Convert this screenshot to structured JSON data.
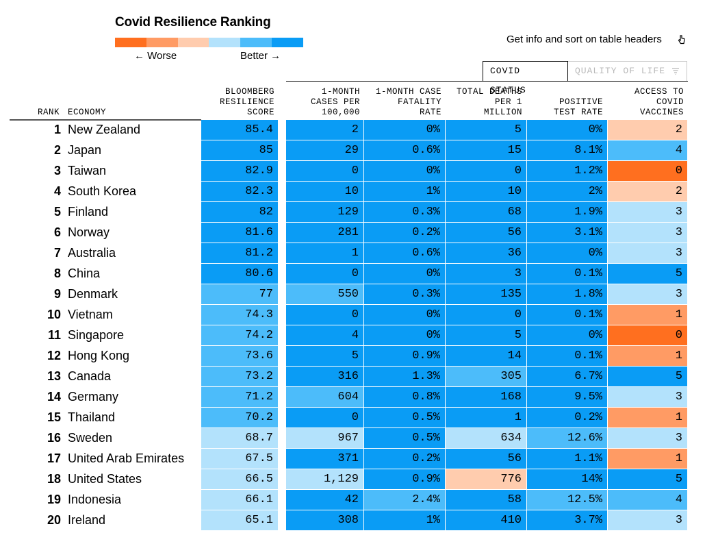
{
  "title": "Covid Resilience Ranking",
  "legend": {
    "worse_label": "← Worse",
    "better_label": "Better →",
    "colors": [
      "#ff6f1f",
      "#ff9b64",
      "#ffccae",
      "#b3e2fc",
      "#4cbcfa",
      "#0a9cf5"
    ]
  },
  "hint": {
    "text": "Get info and sort on table headers",
    "icon": "pointer-hand-icon"
  },
  "tabs": {
    "active": "COVID STATUS",
    "inactive": "QUALITY OF LIFE",
    "filter_icon": "filter-icon"
  },
  "headers": {
    "rank": "RANK",
    "economy": "ECONOMY",
    "score": "BLOOMBERG\nRESILIENCE\nSCORE",
    "cases": "1-MONTH\nCASES PER\n100,000",
    "fatality": "1-MONTH CASE\nFATALITY\nRATE",
    "deaths": "TOTAL DEATHS\nPER 1\nMILLION",
    "positive": "POSITIVE\nTEST RATE",
    "vaccines": "ACCESS TO\nCOVID\nVACCINES"
  },
  "rows": [
    {
      "rank": "1",
      "economy": "New Zealand",
      "score": "85.4",
      "cases": "2",
      "fatality": "0%",
      "deaths": "5",
      "positive": "0%",
      "vaccines": "2",
      "c": [
        5,
        5,
        5,
        5,
        5,
        2
      ]
    },
    {
      "rank": "2",
      "economy": "Japan",
      "score": "85",
      "cases": "29",
      "fatality": "0.6%",
      "deaths": "15",
      "positive": "8.1%",
      "vaccines": "4",
      "c": [
        5,
        5,
        5,
        5,
        5,
        4
      ]
    },
    {
      "rank": "3",
      "economy": "Taiwan",
      "score": "82.9",
      "cases": "0",
      "fatality": "0%",
      "deaths": "0",
      "positive": "1.2%",
      "vaccines": "0",
      "c": [
        5,
        5,
        5,
        5,
        5,
        0
      ]
    },
    {
      "rank": "4",
      "economy": "South Korea",
      "score": "82.3",
      "cases": "10",
      "fatality": "1%",
      "deaths": "10",
      "positive": "2%",
      "vaccines": "2",
      "c": [
        5,
        5,
        5,
        5,
        5,
        2
      ]
    },
    {
      "rank": "5",
      "economy": "Finland",
      "score": "82",
      "cases": "129",
      "fatality": "0.3%",
      "deaths": "68",
      "positive": "1.9%",
      "vaccines": "3",
      "c": [
        5,
        5,
        5,
        5,
        5,
        3
      ]
    },
    {
      "rank": "6",
      "economy": "Norway",
      "score": "81.6",
      "cases": "281",
      "fatality": "0.2%",
      "deaths": "56",
      "positive": "3.1%",
      "vaccines": "3",
      "c": [
        5,
        5,
        5,
        5,
        5,
        3
      ]
    },
    {
      "rank": "7",
      "economy": "Australia",
      "score": "81.2",
      "cases": "1",
      "fatality": "0.6%",
      "deaths": "36",
      "positive": "0%",
      "vaccines": "3",
      "c": [
        5,
        5,
        5,
        5,
        5,
        3
      ]
    },
    {
      "rank": "8",
      "economy": "China",
      "score": "80.6",
      "cases": "0",
      "fatality": "0%",
      "deaths": "3",
      "positive": "0.1%",
      "vaccines": "5",
      "c": [
        5,
        5,
        5,
        5,
        5,
        5
      ]
    },
    {
      "rank": "9",
      "economy": "Denmark",
      "score": "77",
      "cases": "550",
      "fatality": "0.3%",
      "deaths": "135",
      "positive": "1.8%",
      "vaccines": "3",
      "c": [
        4,
        4,
        5,
        5,
        5,
        3
      ]
    },
    {
      "rank": "10",
      "economy": "Vietnam",
      "score": "74.3",
      "cases": "0",
      "fatality": "0%",
      "deaths": "0",
      "positive": "0.1%",
      "vaccines": "1",
      "c": [
        4,
        5,
        5,
        5,
        5,
        1
      ]
    },
    {
      "rank": "11",
      "economy": "Singapore",
      "score": "74.2",
      "cases": "4",
      "fatality": "0%",
      "deaths": "5",
      "positive": "0%",
      "vaccines": "0",
      "c": [
        4,
        5,
        5,
        5,
        5,
        0
      ]
    },
    {
      "rank": "12",
      "economy": "Hong Kong",
      "score": "73.6",
      "cases": "5",
      "fatality": "0.9%",
      "deaths": "14",
      "positive": "0.1%",
      "vaccines": "1",
      "c": [
        4,
        5,
        5,
        5,
        5,
        1
      ]
    },
    {
      "rank": "13",
      "economy": "Canada",
      "score": "73.2",
      "cases": "316",
      "fatality": "1.3%",
      "deaths": "305",
      "positive": "6.7%",
      "vaccines": "5",
      "c": [
        4,
        5,
        5,
        4,
        5,
        5
      ]
    },
    {
      "rank": "14",
      "economy": "Germany",
      "score": "71.2",
      "cases": "604",
      "fatality": "0.8%",
      "deaths": "168",
      "positive": "9.5%",
      "vaccines": "3",
      "c": [
        4,
        4,
        5,
        5,
        5,
        3
      ]
    },
    {
      "rank": "15",
      "economy": "Thailand",
      "score": "70.2",
      "cases": "0",
      "fatality": "0.5%",
      "deaths": "1",
      "positive": "0.2%",
      "vaccines": "1",
      "c": [
        4,
        5,
        5,
        5,
        5,
        1
      ]
    },
    {
      "rank": "16",
      "economy": "Sweden",
      "score": "68.7",
      "cases": "967",
      "fatality": "0.5%",
      "deaths": "634",
      "positive": "12.6%",
      "vaccines": "3",
      "c": [
        3,
        3,
        5,
        3,
        4,
        3
      ]
    },
    {
      "rank": "17",
      "economy": "United Arab Emirates",
      "score": "67.5",
      "cases": "371",
      "fatality": "0.2%",
      "deaths": "56",
      "positive": "1.1%",
      "vaccines": "1",
      "c": [
        3,
        5,
        5,
        5,
        5,
        1
      ]
    },
    {
      "rank": "18",
      "economy": "United States",
      "score": "66.5",
      "cases": "1,129",
      "fatality": "0.9%",
      "deaths": "776",
      "positive": "14%",
      "vaccines": "5",
      "c": [
        3,
        3,
        5,
        2,
        5,
        5
      ]
    },
    {
      "rank": "19",
      "economy": "Indonesia",
      "score": "66.1",
      "cases": "42",
      "fatality": "2.4%",
      "deaths": "58",
      "positive": "12.5%",
      "vaccines": "4",
      "c": [
        3,
        5,
        4,
        5,
        4,
        4
      ]
    },
    {
      "rank": "20",
      "economy": "Ireland",
      "score": "65.1",
      "cases": "308",
      "fatality": "1%",
      "deaths": "410",
      "positive": "3.7%",
      "vaccines": "3",
      "c": [
        3,
        5,
        5,
        5,
        5,
        3
      ]
    }
  ]
}
